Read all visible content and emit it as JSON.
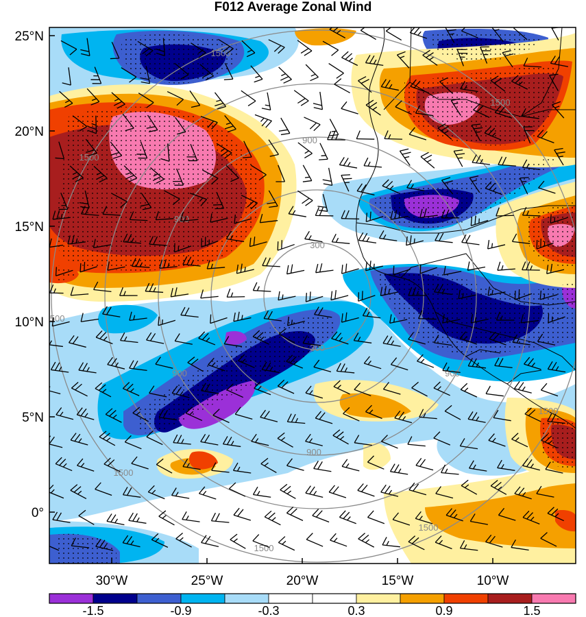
{
  "title": "F012 Average Zonal Wind",
  "axes": {
    "lat_ticks": [
      "25°N",
      "20°N",
      "15°N",
      "10°N",
      "5°N",
      "0°"
    ],
    "lon_ticks": [
      "30°W",
      "25°W",
      "20°W",
      "15°W",
      "10°W"
    ]
  },
  "colorbar": {
    "labels": [
      "-1.5",
      "-0.9",
      "-0.3",
      "0.3",
      "0.9",
      "1.5"
    ],
    "colors": [
      "#9b30d8",
      "#00008c",
      "#3d5fd0",
      "#00b4f0",
      "#a8dcf8",
      "#ffffff",
      "#ffffff",
      "#fff0a0",
      "#f5a000",
      "#f04000",
      "#a81e1e",
      "#f87ab0"
    ]
  },
  "range_rings": {
    "labels": [
      "300",
      "900",
      "1500"
    ],
    "color": "#8a8a8a"
  },
  "palette": {
    "purple": "#9b30d8",
    "navy": "#00008c",
    "blue": "#3d5fd0",
    "cyan": "#00b4f0",
    "lightblue": "#a8dcf8",
    "yellow": "#fff0a0",
    "orange": "#f5a000",
    "red": "#f04000",
    "darkred": "#a81e1e",
    "pink": "#f87ab0"
  }
}
